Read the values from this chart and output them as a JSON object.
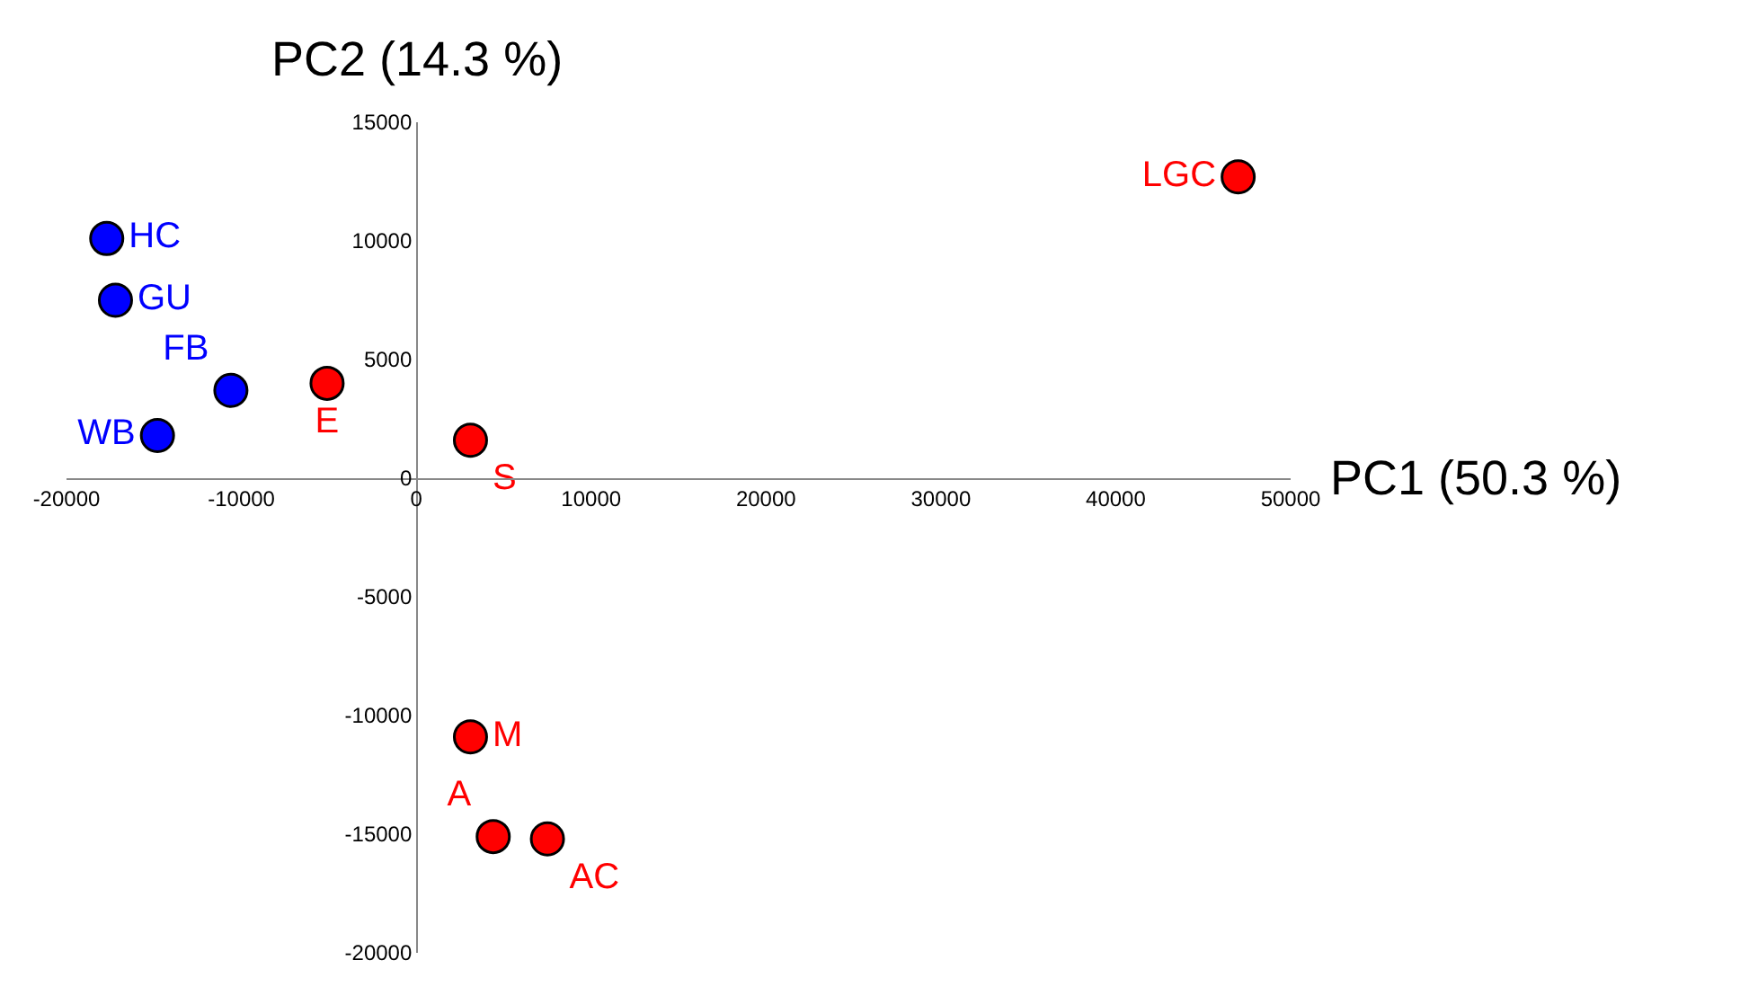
{
  "chart_data": {
    "type": "scatter",
    "xlabel": "PC1 (50.3 %)",
    "ylabel": "PC2 (14.3 %)",
    "xlim": [
      -20000,
      50000
    ],
    "xticks": [
      -20000,
      -10000,
      0,
      10000,
      20000,
      30000,
      40000,
      50000
    ],
    "ylim": [
      -20000,
      15000
    ],
    "yticks": [
      -20000,
      -15000,
      -10000,
      -5000,
      0,
      5000,
      10000,
      15000
    ],
    "marker": "circle",
    "series": [
      {
        "color": "#0000ff",
        "x": [
          -17700,
          -17200,
          -10600,
          -14800
        ],
        "values": [
          10100,
          7500,
          3700,
          1800
        ],
        "value_labels": [
          "HC",
          "GU",
          "FB",
          "WB"
        ]
      },
      {
        "color": "#ff0000",
        "x": [
          -5100,
          3100,
          47000,
          3100,
          4400,
          7500
        ],
        "values": [
          4000,
          1600,
          12700,
          -10900,
          -15100,
          -15200
        ],
        "value_labels": [
          "E",
          "S",
          "LGC",
          "M",
          "A",
          "AC"
        ]
      }
    ]
  }
}
